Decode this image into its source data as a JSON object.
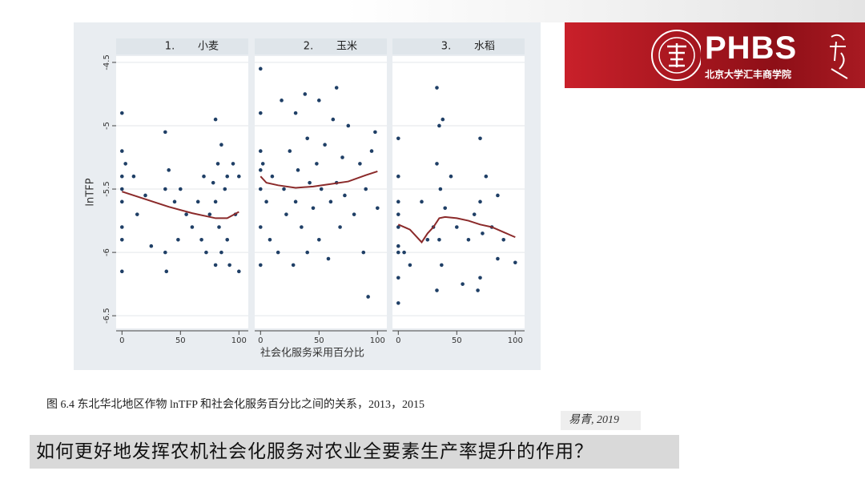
{
  "chart_data": [
    {
      "type": "scatter",
      "label": "1.",
      "title": "小麦",
      "y_label": "lnTFP",
      "xlim": [
        -5,
        108
      ],
      "ylim": [
        -6.6,
        -4.45
      ],
      "xticks": [
        0,
        50,
        100
      ],
      "yticks": [
        -4.5,
        -5,
        -5.5,
        -6,
        -6.5
      ],
      "grid": true,
      "points": {
        "color": "#1f3f66",
        "x": [
          0,
          0,
          0,
          0,
          0,
          0,
          0,
          0,
          3,
          10,
          13,
          20,
          25,
          37,
          37,
          37,
          38,
          40,
          45,
          48,
          50,
          55,
          60,
          65,
          68,
          70,
          72,
          75,
          78,
          80,
          80,
          80,
          82,
          83,
          85,
          85,
          88,
          90,
          90,
          92,
          95,
          97,
          100,
          100
        ],
        "y": [
          -4.9,
          -5.2,
          -5.4,
          -5.6,
          -5.8,
          -5.9,
          -6.15,
          -5.5,
          -5.3,
          -5.4,
          -5.7,
          -5.55,
          -5.95,
          -5.05,
          -5.5,
          -6.0,
          -6.15,
          -5.35,
          -5.6,
          -5.9,
          -5.5,
          -5.7,
          -5.8,
          -5.6,
          -5.9,
          -5.4,
          -6.0,
          -5.7,
          -5.45,
          -4.95,
          -5.6,
          -6.1,
          -5.3,
          -5.8,
          -5.15,
          -6.0,
          -5.5,
          -5.9,
          -5.4,
          -6.1,
          -5.3,
          -5.7,
          -5.4,
          -6.15
        ]
      },
      "fit": {
        "color": "#8b2a2a",
        "x": [
          0,
          20,
          40,
          60,
          80,
          90,
          100
        ],
        "y": [
          -5.52,
          -5.58,
          -5.64,
          -5.69,
          -5.73,
          -5.73,
          -5.68
        ]
      }
    },
    {
      "type": "scatter",
      "label": "2.",
      "title": "玉米",
      "x_label": "社会化服务采用百分比",
      "xlim": [
        -5,
        108
      ],
      "ylim": [
        -6.6,
        -4.45
      ],
      "xticks": [
        0,
        50,
        100
      ],
      "yticks": [
        -4.5,
        -5,
        -5.5,
        -6,
        -6.5
      ],
      "grid": true,
      "points": {
        "color": "#1f3f66",
        "x": [
          0,
          0,
          0,
          0,
          0,
          0,
          0,
          2,
          5,
          8,
          10,
          15,
          18,
          20,
          22,
          25,
          28,
          30,
          30,
          32,
          35,
          38,
          40,
          40,
          42,
          45,
          48,
          50,
          50,
          52,
          55,
          58,
          60,
          62,
          65,
          65,
          68,
          70,
          72,
          75,
          80,
          85,
          88,
          90,
          92,
          95,
          98,
          100
        ],
        "y": [
          -4.55,
          -4.9,
          -5.2,
          -5.5,
          -5.8,
          -6.1,
          -5.35,
          -5.3,
          -5.6,
          -5.9,
          -5.4,
          -6.0,
          -4.8,
          -5.5,
          -5.7,
          -5.2,
          -6.1,
          -4.9,
          -5.6,
          -5.35,
          -5.8,
          -4.75,
          -5.1,
          -6.0,
          -5.45,
          -5.65,
          -5.3,
          -4.8,
          -5.9,
          -5.5,
          -5.15,
          -6.05,
          -5.6,
          -4.95,
          -4.7,
          -5.45,
          -5.8,
          -5.25,
          -5.55,
          -5.0,
          -5.7,
          -5.3,
          -6.0,
          -5.5,
          -6.35,
          -5.2,
          -5.05,
          -5.65
        ]
      },
      "fit": {
        "color": "#8b2a2a",
        "x": [
          0,
          5,
          15,
          30,
          45,
          60,
          75,
          90,
          100
        ],
        "y": [
          -5.4,
          -5.45,
          -5.47,
          -5.49,
          -5.48,
          -5.46,
          -5.44,
          -5.39,
          -5.36
        ]
      }
    },
    {
      "type": "scatter",
      "label": "3.",
      "title": "水稻",
      "xlim": [
        -5,
        108
      ],
      "ylim": [
        -6.6,
        -4.45
      ],
      "xticks": [
        0,
        50,
        100
      ],
      "yticks": [
        -4.5,
        -5,
        -5.5,
        -6,
        -6.5
      ],
      "grid": true,
      "points": {
        "color": "#1f3f66",
        "x": [
          0,
          0,
          0,
          0,
          0,
          0,
          0,
          0,
          0,
          5,
          10,
          20,
          25,
          30,
          33,
          33,
          33,
          35,
          35,
          36,
          37,
          38,
          40,
          45,
          50,
          55,
          60,
          65,
          68,
          70,
          70,
          70,
          72,
          75,
          80,
          85,
          85,
          90,
          100
        ],
        "y": [
          -5.1,
          -5.4,
          -5.6,
          -5.8,
          -6.0,
          -6.2,
          -6.4,
          -5.7,
          -5.95,
          -6.0,
          -6.1,
          -5.6,
          -5.9,
          -5.8,
          -4.7,
          -5.3,
          -6.3,
          -5.0,
          -5.9,
          -5.5,
          -6.1,
          -4.95,
          -5.65,
          -5.4,
          -5.8,
          -6.25,
          -5.9,
          -5.7,
          -6.3,
          -5.1,
          -5.6,
          -6.2,
          -5.85,
          -5.4,
          -5.8,
          -5.55,
          -6.05,
          -5.9,
          -6.08
        ]
      },
      "fit": {
        "color": "#8b2a2a",
        "x": [
          0,
          10,
          20,
          25,
          30,
          35,
          40,
          50,
          60,
          70,
          80,
          90,
          100
        ],
        "y": [
          -5.78,
          -5.82,
          -5.92,
          -5.85,
          -5.8,
          -5.73,
          -5.72,
          -5.73,
          -5.75,
          -5.78,
          -5.8,
          -5.84,
          -5.88
        ]
      }
    }
  ],
  "caption": "图 6.4 东北华北地区作物 lnTFP 和社会化服务百分比之间的关系，2013，2015",
  "source": "易青, 2019",
  "question": "如何更好地发挥农机社会化服务对农业全要素生产率提升的作用？",
  "logo": {
    "name": "PHBS",
    "subtitle": "北京大学汇丰商学院"
  }
}
